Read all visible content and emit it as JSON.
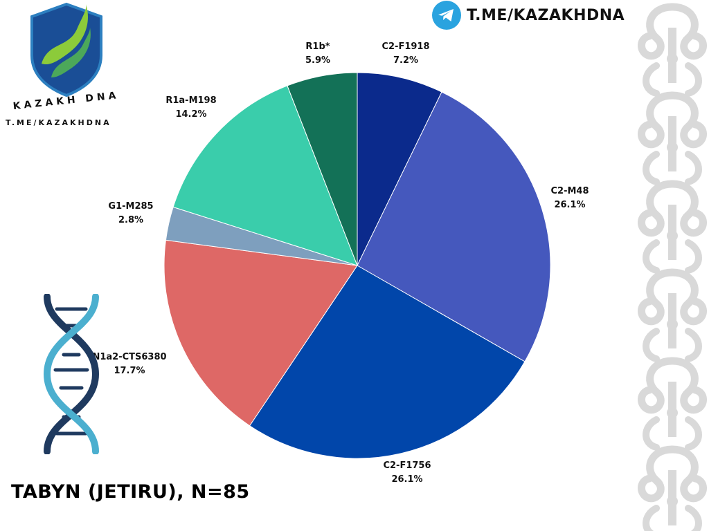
{
  "brand": {
    "logo_text": "KAZAKH DNA",
    "logo_url": "T.ME/KAZAKHDNA",
    "telegram_handle": "T.ME/KAZAKHDNA"
  },
  "title": "TABYN (JETIRU), N=85",
  "colors": {
    "telegram": "#2AA3DF",
    "ornament": "#D9D9D9",
    "dna_dark": "#1F3A5F",
    "dna_light": "#4BAFCF"
  },
  "chart_data": {
    "type": "pie",
    "start_angle_deg": 0,
    "direction": "clockwise",
    "slices": [
      {
        "label": "C2-F1918",
        "value": 7.2,
        "display": "7.2%",
        "color": "#0B2A8C"
      },
      {
        "label": "C2-M48",
        "value": 26.1,
        "display": "26.1%",
        "color": "#4558BD"
      },
      {
        "label": "C2-F1756",
        "value": 26.1,
        "display": "26.1%",
        "color": "#0146AA"
      },
      {
        "label": "N1a2-CTS6380",
        "value": 17.7,
        "display": "17.7%",
        "color": "#DE6866"
      },
      {
        "label": "G1-M285",
        "value": 2.8,
        "display": "2.8%",
        "color": "#7E9FBE"
      },
      {
        "label": "R1a-M198",
        "value": 14.2,
        "display": "14.2%",
        "color": "#3ACDAB"
      },
      {
        "label": "R1b*",
        "value": 5.9,
        "display": "5.9%",
        "color": "#137157"
      }
    ]
  }
}
